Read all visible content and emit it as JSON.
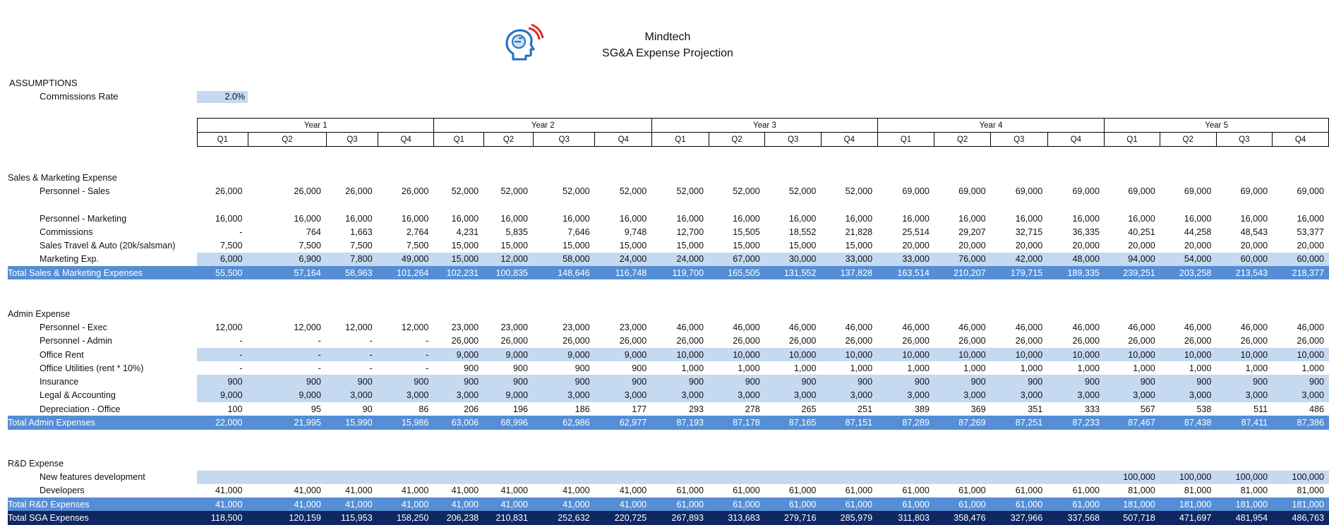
{
  "header": {
    "company": "Mindtech",
    "subtitle": "SG&A Expense Projection"
  },
  "assumptions": {
    "title": "ASSUMPTIONS",
    "commissions_label": "Commissions Rate",
    "commissions_value": "2.0%"
  },
  "years": [
    "Year 1",
    "Year 2",
    "Year 3",
    "Year 4",
    "Year 5"
  ],
  "quarters": [
    "Q1",
    "Q2",
    "Q3",
    "Q4",
    "Q1",
    "Q2",
    "Q3",
    "Q4",
    "Q1",
    "Q2",
    "Q3",
    "Q4",
    "Q1",
    "Q2",
    "Q3",
    "Q4",
    "Q1",
    "Q2",
    "Q3",
    "Q4"
  ],
  "colors": {
    "input_fill": "#c5d9f1",
    "total_row": "#558ed5",
    "grand_total_row": "#0f2762",
    "logo_blue": "#1f6fc6",
    "logo_red": "#e02b2b"
  },
  "rows": [
    {
      "type": "section",
      "label": "Sales & Marketing Expense"
    },
    {
      "type": "item",
      "label": "Personnel - Sales",
      "values": [
        "26,000",
        "26,000",
        "26,000",
        "26,000",
        "52,000",
        "52,000",
        "52,000",
        "52,000",
        "52,000",
        "52,000",
        "52,000",
        "52,000",
        "69,000",
        "69,000",
        "69,000",
        "69,000",
        "69,000",
        "69,000",
        "69,000",
        "69,000"
      ]
    },
    {
      "type": "blank"
    },
    {
      "type": "item",
      "label": "Personnel - Marketing",
      "values": [
        "16,000",
        "16,000",
        "16,000",
        "16,000",
        "16,000",
        "16,000",
        "16,000",
        "16,000",
        "16,000",
        "16,000",
        "16,000",
        "16,000",
        "16,000",
        "16,000",
        "16,000",
        "16,000",
        "16,000",
        "16,000",
        "16,000",
        "16,000"
      ]
    },
    {
      "type": "item",
      "label": "Commissions",
      "values": [
        "-",
        "764",
        "1,663",
        "2,764",
        "4,231",
        "5,835",
        "7,646",
        "9,748",
        "12,700",
        "15,505",
        "18,552",
        "21,828",
        "25,514",
        "29,207",
        "32,715",
        "36,335",
        "40,251",
        "44,258",
        "48,543",
        "53,377"
      ]
    },
    {
      "type": "item",
      "label": "Sales Travel & Auto (20k/salsman)",
      "values": [
        "7,500",
        "7,500",
        "7,500",
        "7,500",
        "15,000",
        "15,000",
        "15,000",
        "15,000",
        "15,000",
        "15,000",
        "15,000",
        "15,000",
        "20,000",
        "20,000",
        "20,000",
        "20,000",
        "20,000",
        "20,000",
        "20,000",
        "20,000"
      ]
    },
    {
      "type": "item",
      "hl": true,
      "label": "Marketing Exp.",
      "values": [
        "6,000",
        "6,900",
        "7,800",
        "49,000",
        "15,000",
        "12,000",
        "58,000",
        "24,000",
        "24,000",
        "67,000",
        "30,000",
        "33,000",
        "33,000",
        "76,000",
        "42,000",
        "48,000",
        "94,000",
        "54,000",
        "60,000",
        "60,000"
      ]
    },
    {
      "type": "total",
      "label": "Total Sales & Marketing Expenses",
      "values": [
        "55,500",
        "57,164",
        "58,963",
        "101,264",
        "102,231",
        "100,835",
        "148,646",
        "116,748",
        "119,700",
        "165,505",
        "131,552",
        "137,828",
        "163,514",
        "210,207",
        "179,715",
        "189,335",
        "239,251",
        "203,258",
        "213,543",
        "218,377"
      ]
    },
    {
      "type": "blank"
    },
    {
      "type": "blank"
    },
    {
      "type": "section",
      "label": "Admin Expense"
    },
    {
      "type": "item",
      "label": "Personnel - Exec",
      "values": [
        "12,000",
        "12,000",
        "12,000",
        "12,000",
        "23,000",
        "23,000",
        "23,000",
        "23,000",
        "46,000",
        "46,000",
        "46,000",
        "46,000",
        "46,000",
        "46,000",
        "46,000",
        "46,000",
        "46,000",
        "46,000",
        "46,000",
        "46,000"
      ]
    },
    {
      "type": "item",
      "label": "Personnel - Admin",
      "values": [
        "-",
        "-",
        "-",
        "-",
        "26,000",
        "26,000",
        "26,000",
        "26,000",
        "26,000",
        "26,000",
        "26,000",
        "26,000",
        "26,000",
        "26,000",
        "26,000",
        "26,000",
        "26,000",
        "26,000",
        "26,000",
        "26,000"
      ]
    },
    {
      "type": "item",
      "hl": true,
      "label": "Office Rent",
      "values": [
        "-",
        "-",
        "-",
        "-",
        "9,000",
        "9,000",
        "9,000",
        "9,000",
        "10,000",
        "10,000",
        "10,000",
        "10,000",
        "10,000",
        "10,000",
        "10,000",
        "10,000",
        "10,000",
        "10,000",
        "10,000",
        "10,000"
      ]
    },
    {
      "type": "item",
      "label": "Office Utilities (rent * 10%)",
      "values": [
        "-",
        "-",
        "-",
        "-",
        "900",
        "900",
        "900",
        "900",
        "1,000",
        "1,000",
        "1,000",
        "1,000",
        "1,000",
        "1,000",
        "1,000",
        "1,000",
        "1,000",
        "1,000",
        "1,000",
        "1,000"
      ]
    },
    {
      "type": "item",
      "hl": true,
      "label": "Insurance",
      "values": [
        "900",
        "900",
        "900",
        "900",
        "900",
        "900",
        "900",
        "900",
        "900",
        "900",
        "900",
        "900",
        "900",
        "900",
        "900",
        "900",
        "900",
        "900",
        "900",
        "900"
      ]
    },
    {
      "type": "item",
      "hl": true,
      "label": "Legal & Accounting",
      "values": [
        "9,000",
        "9,000",
        "3,000",
        "3,000",
        "3,000",
        "9,000",
        "3,000",
        "3,000",
        "3,000",
        "3,000",
        "3,000",
        "3,000",
        "3,000",
        "3,000",
        "3,000",
        "3,000",
        "3,000",
        "3,000",
        "3,000",
        "3,000"
      ]
    },
    {
      "type": "item",
      "label": "Depreciation - Office",
      "values": [
        "100",
        "95",
        "90",
        "86",
        "206",
        "196",
        "186",
        "177",
        "293",
        "278",
        "265",
        "251",
        "389",
        "369",
        "351",
        "333",
        "567",
        "538",
        "511",
        "486"
      ]
    },
    {
      "type": "total",
      "label": "Total Admin Expenses",
      "values": [
        "22,000",
        "21,995",
        "15,990",
        "15,986",
        "63,006",
        "68,996",
        "62,986",
        "62,977",
        "87,193",
        "87,178",
        "87,165",
        "87,151",
        "87,289",
        "87,269",
        "87,251",
        "87,233",
        "87,467",
        "87,438",
        "87,411",
        "87,386"
      ]
    },
    {
      "type": "blank"
    },
    {
      "type": "blank"
    },
    {
      "type": "section",
      "label": "R&D Expense"
    },
    {
      "type": "item",
      "hl": true,
      "label": "New features development",
      "values": [
        "",
        "",
        "",
        "",
        "",
        "",
        "",
        "",
        "",
        "",
        "",
        "",
        "",
        "",
        "",
        "",
        "100,000",
        "100,000",
        "100,000",
        "100,000"
      ]
    },
    {
      "type": "item",
      "label": "Developers",
      "values": [
        "41,000",
        "41,000",
        "41,000",
        "41,000",
        "41,000",
        "41,000",
        "41,000",
        "41,000",
        "61,000",
        "61,000",
        "61,000",
        "61,000",
        "61,000",
        "61,000",
        "61,000",
        "61,000",
        "81,000",
        "81,000",
        "81,000",
        "81,000"
      ]
    },
    {
      "type": "total",
      "label": "Total R&D Expenses",
      "values": [
        "41,000",
        "41,000",
        "41,000",
        "41,000",
        "41,000",
        "41,000",
        "41,000",
        "41,000",
        "61,000",
        "61,000",
        "61,000",
        "61,000",
        "61,000",
        "61,000",
        "61,000",
        "61,000",
        "181,000",
        "181,000",
        "181,000",
        "181,000"
      ]
    },
    {
      "type": "grand",
      "label": "Total SGA Expenses",
      "values": [
        "118,500",
        "120,159",
        "115,953",
        "158,250",
        "206,238",
        "210,831",
        "252,632",
        "220,725",
        "267,893",
        "313,683",
        "279,716",
        "285,979",
        "311,803",
        "358,476",
        "327,966",
        "337,568",
        "507,718",
        "471,697",
        "481,954",
        "486,763"
      ]
    }
  ]
}
